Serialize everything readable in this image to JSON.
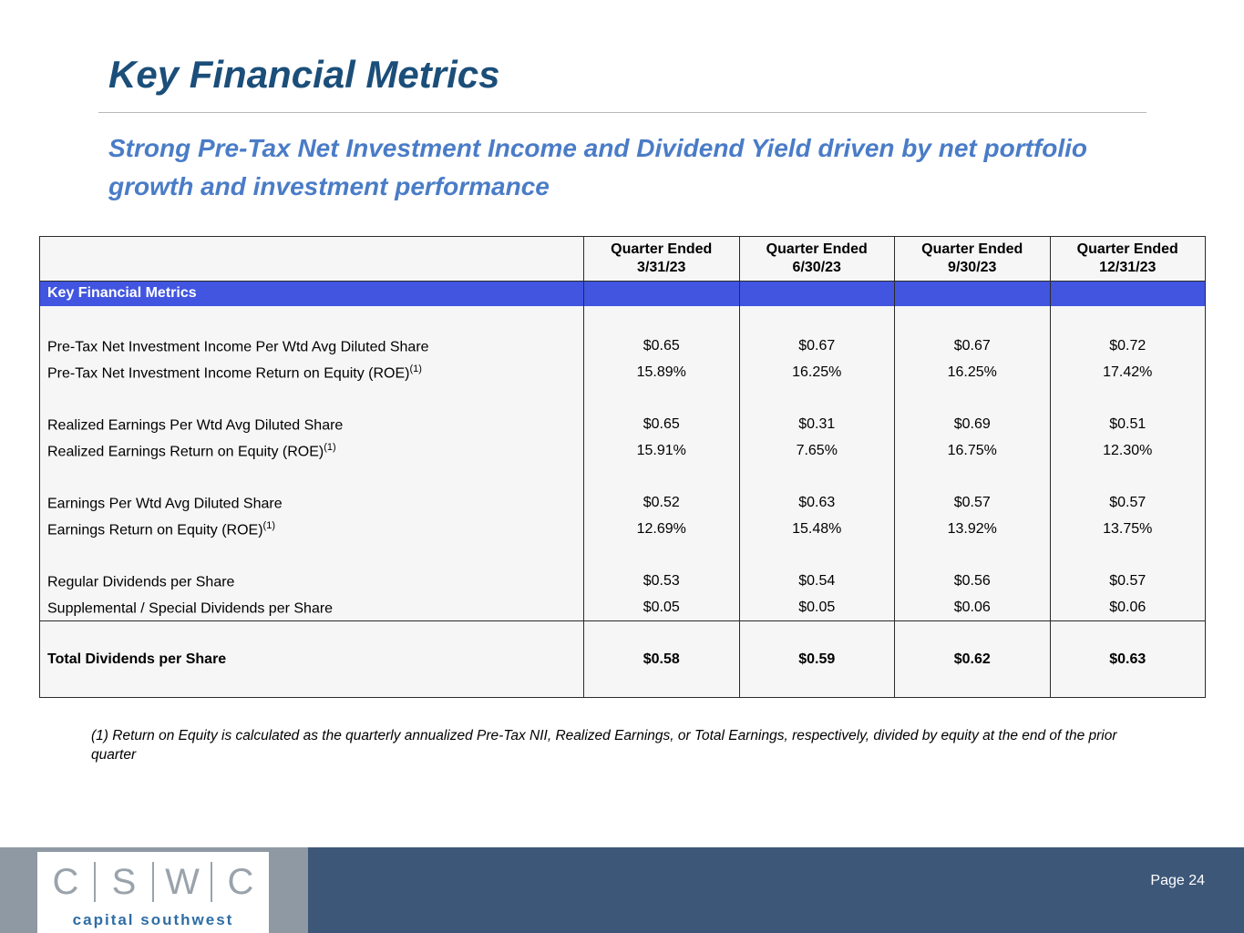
{
  "slide": {
    "title": "Key Financial Metrics",
    "subtitle": "Strong Pre-Tax Net Investment Income and Dividend Yield driven by net portfolio growth and investment performance",
    "footnote": "(1)  Return on Equity is calculated as the quarterly annualized Pre-Tax NII, Realized Earnings, or Total Earnings, respectively, divided by equity at the end of the prior quarter",
    "page_label": "Page 24"
  },
  "colors": {
    "title_navy": "#1b4e79",
    "subtitle_blue": "#4a7cc7",
    "band_blue": "#4155e0",
    "footer_blue": "#3d5778",
    "footer_gray": "#8f99a3",
    "logo_caption_blue": "#2e6da4"
  },
  "logo": {
    "letters": [
      "C",
      "S",
      "W",
      "C"
    ],
    "caption": "capital southwest"
  },
  "table": {
    "band_label": "Key Financial Metrics",
    "columns": [
      {
        "title": "Quarter Ended",
        "date": "3/31/23"
      },
      {
        "title": "Quarter Ended",
        "date": "6/30/23"
      },
      {
        "title": "Quarter Ended",
        "date": "9/30/23"
      },
      {
        "title": "Quarter Ended",
        "date": "12/31/23"
      }
    ],
    "rows": [
      {
        "label": "Pre-Tax Net Investment Income Per Wtd Avg Diluted Share",
        "values": [
          "$0.65",
          "$0.67",
          "$0.67",
          "$0.72"
        ]
      },
      {
        "label": "Pre-Tax Net Investment Income Return on Equity (ROE)",
        "ref": "(1)",
        "values": [
          "15.89%",
          "16.25%",
          "16.25%",
          "17.42%"
        ]
      },
      {
        "label": "Realized Earnings Per Wtd Avg Diluted Share",
        "values": [
          "$0.65",
          "$0.31",
          "$0.69",
          "$0.51"
        ]
      },
      {
        "label": "Realized Earnings Return on Equity (ROE)",
        "ref": "(1)",
        "values": [
          "15.91%",
          "7.65%",
          "16.75%",
          "12.30%"
        ]
      },
      {
        "label": "Earnings Per Wtd Avg Diluted Share",
        "values": [
          "$0.52",
          "$0.63",
          "$0.57",
          "$0.57"
        ]
      },
      {
        "label": "Earnings Return on Equity (ROE)",
        "ref": "(1)",
        "values": [
          "12.69%",
          "15.48%",
          "13.92%",
          "13.75%"
        ]
      },
      {
        "label": "Regular Dividends per Share",
        "values": [
          "$0.53",
          "$0.54",
          "$0.56",
          "$0.57"
        ]
      },
      {
        "label": "Supplemental / Special Dividends per Share",
        "values": [
          "$0.05",
          "$0.05",
          "$0.06",
          "$0.06"
        ]
      }
    ],
    "total_row": {
      "label": "Total Dividends per Share",
      "values": [
        "$0.58",
        "$0.59",
        "$0.62",
        "$0.63"
      ]
    }
  }
}
